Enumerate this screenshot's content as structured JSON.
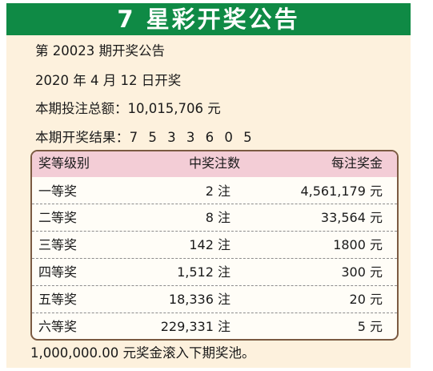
{
  "banner": {
    "title": "7 星彩开奖公告"
  },
  "info": {
    "issue": "第 20023 期开奖公告",
    "date": "2020 年 4 月 12 日开奖",
    "sales_label": "本期投注总额：",
    "sales_value": "10,015,706 元",
    "result_label": "本期开奖结果：",
    "result_digits": "7 5 3 3 6 0 5"
  },
  "table": {
    "headers": [
      "奖等级别",
      "中奖注数",
      "每注奖金"
    ],
    "rows": [
      {
        "level": "一等奖",
        "count": "2 注",
        "prize": "4,561,179 元"
      },
      {
        "level": "二等奖",
        "count": "8 注",
        "prize": "33,564 元"
      },
      {
        "level": "三等奖",
        "count": "142 注",
        "prize": "1800 元"
      },
      {
        "level": "四等奖",
        "count": "1,512 注",
        "prize": "300 元"
      },
      {
        "level": "五等奖",
        "count": "18,336 注",
        "prize": "20 元"
      },
      {
        "level": "六等奖",
        "count": "229,331 注",
        "prize": "5 元"
      }
    ]
  },
  "footer": {
    "note": "1,000,000.00 元奖金滚入下期奖池。"
  },
  "colors": {
    "banner_bg": "#0f8a45",
    "panel_bg": "#fdf1dd",
    "header_bg": "#f3cdd6",
    "table_border": "#7b5a42"
  }
}
